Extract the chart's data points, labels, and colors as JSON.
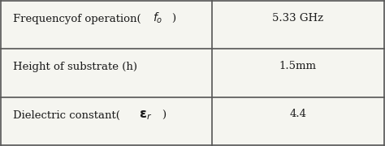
{
  "rows": [
    {
      "label": "Frequencyof operation($\\mathit{f_o}$)",
      "label_plain": "Frequencyof operation(",
      "label_symbol": "f_o",
      "label_suffix": ")",
      "value": "5.33 GHz"
    },
    {
      "label": "Height of substrate (h)",
      "label_plain": "Height of substrate (h)",
      "label_symbol": "",
      "label_suffix": "",
      "value": "1.5mm"
    },
    {
      "label": "Dielectric constant($\\boldsymbol{\\varepsilon}_r$)",
      "label_plain": "Dielectric constant(",
      "label_symbol": "epsilon_r",
      "label_suffix": ")",
      "value": "4.4"
    }
  ],
  "col_split": 0.55,
  "background_color": "#f5f5f0",
  "line_color": "#555555",
  "text_color": "#1a1a1a",
  "font_size": 9.5,
  "value_font_size": 9.5
}
